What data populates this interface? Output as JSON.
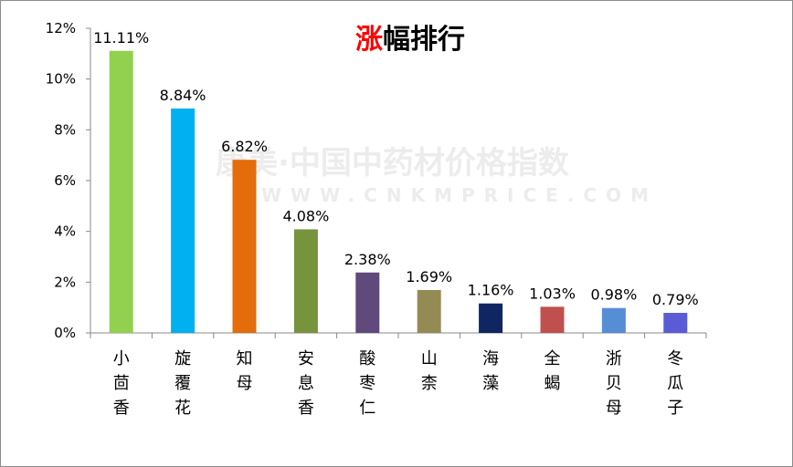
{
  "chart_data": {
    "type": "bar",
    "title_accent": "涨",
    "title_rest": "幅排行",
    "categories": [
      "小茴香",
      "旋覆花",
      "知母",
      "安息香",
      "酸枣仁",
      "山柰",
      "海藻",
      "全蝎",
      "浙贝母",
      "冬瓜子"
    ],
    "values": [
      11.11,
      8.84,
      6.82,
      4.08,
      2.38,
      1.69,
      1.16,
      1.03,
      0.98,
      0.79
    ],
    "data_labels": [
      "11.11%",
      "8.84%",
      "6.82%",
      "4.08%",
      "2.38%",
      "1.69%",
      "1.16%",
      "1.03%",
      "0.98%",
      "0.79%"
    ],
    "bar_colors": [
      "#92D050",
      "#00B0F0",
      "#E46C0A",
      "#77933C",
      "#604A7B",
      "#948A54",
      "#0F2663",
      "#C0504D",
      "#558ED5",
      "#5B5BD6"
    ],
    "y_ticks": [
      "0%",
      "2%",
      "4%",
      "6%",
      "8%",
      "10%",
      "12%"
    ],
    "ylim": [
      0,
      12
    ],
    "xlabel": "",
    "ylabel": "",
    "grid": false,
    "legend": "none",
    "title_accent_color": "#FF0000",
    "watermark": {
      "main": "康美·中国中药材价格指数",
      "sub": "WWW.CNKMPRICE.COM"
    }
  }
}
